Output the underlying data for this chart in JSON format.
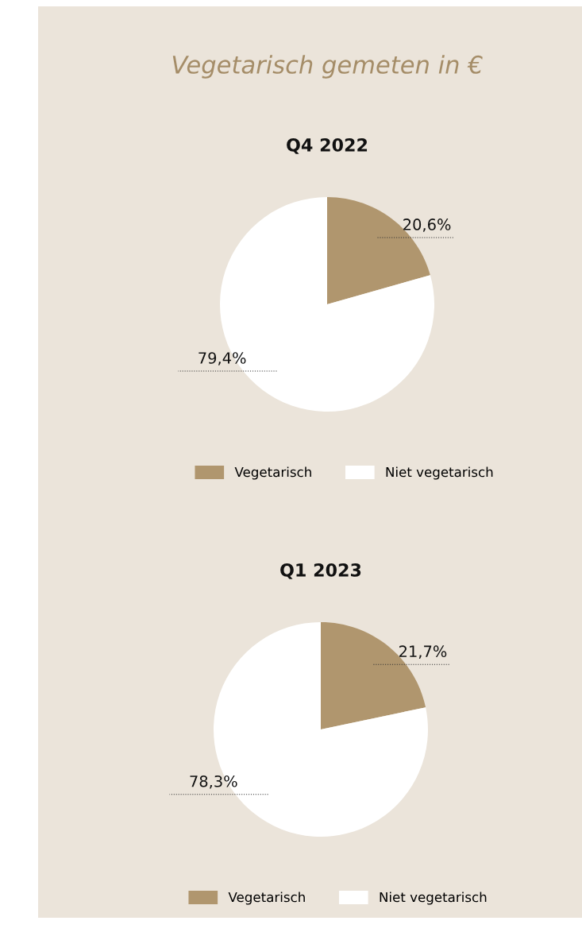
{
  "chart_data": [
    {
      "type": "pie",
      "title": "Q4 2022",
      "annotations": [
        "Vegetarisch gemeten in €"
      ],
      "categories": [
        "Vegetarisch",
        "Niet vegetarisch"
      ],
      "values": [
        20.6,
        79.4
      ],
      "colors": [
        "#b0966e",
        "#ffffff"
      ],
      "value_labels": [
        "20,6%",
        "79,4%"
      ],
      "legend": "bottom"
    },
    {
      "type": "pie",
      "title": "Q1 2023",
      "categories": [
        "Vegetarisch",
        "Niet vegetarisch"
      ],
      "values": [
        21.7,
        78.3
      ],
      "colors": [
        "#b0966e",
        "#ffffff"
      ],
      "value_labels": [
        "21,7%",
        "78,3%"
      ],
      "legend": "bottom"
    }
  ]
}
